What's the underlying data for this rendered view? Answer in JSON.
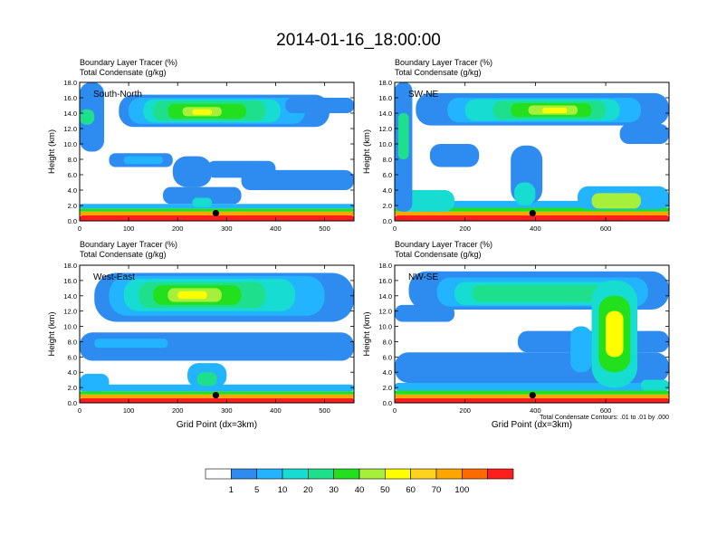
{
  "title": "2014-01-16_18:00:00",
  "colorbar": {
    "colors": [
      "#ffffff",
      "#2e8cf0",
      "#22b4ff",
      "#16dcd2",
      "#1ee08c",
      "#22e01e",
      "#a6f03c",
      "#ffff00",
      "#ffd21e",
      "#ffa500",
      "#ff6a00",
      "#ff1e1e"
    ],
    "labels": [
      "1",
      "5",
      "10",
      "20",
      "30",
      "40",
      "50",
      "60",
      "70",
      "100"
    ]
  },
  "footnote": "Total Condensate Contours: .01 to .01 by .000",
  "chart_data": [
    {
      "type": "heatmap",
      "panel": "South-North",
      "title_line1": "Boundary Layer Tracer   (%)",
      "title_line2": "Total Condensate   (g/kg)",
      "ylabel": "Height (km)",
      "xlabel": "",
      "xlim": [
        0,
        560
      ],
      "ylim": [
        0,
        18
      ],
      "xticks": [
        0,
        100,
        200,
        300,
        400,
        500
      ],
      "yticks": [
        "0.0",
        "2.0",
        "4.0",
        "6.0",
        "8.0",
        "10.0",
        "12.0",
        "14.0",
        "16.0",
        "18.0"
      ],
      "marker": {
        "x": 278,
        "y": 1.0
      },
      "blobs": [
        {
          "x0": 0,
          "x1": 560,
          "y0": 0,
          "y1": 0.7,
          "level": 11
        },
        {
          "x0": 0,
          "x1": 560,
          "y0": 0.7,
          "y1": 1.2,
          "level": 9
        },
        {
          "x0": 0,
          "x1": 560,
          "y0": 1.2,
          "y1": 1.6,
          "level": 5
        },
        {
          "x0": 0,
          "x1": 560,
          "y0": 1.6,
          "y1": 2.2,
          "level": 2
        },
        {
          "x0": 170,
          "x1": 330,
          "y0": 2.2,
          "y1": 4.4,
          "level": 1
        },
        {
          "x0": 190,
          "x1": 270,
          "y0": 4.4,
          "y1": 8.4,
          "level": 1
        },
        {
          "x0": 230,
          "x1": 270,
          "y0": 1.8,
          "y1": 3.0,
          "level": 3
        },
        {
          "x0": 260,
          "x1": 400,
          "y0": 5.6,
          "y1": 7.8,
          "level": 1
        },
        {
          "x0": 60,
          "x1": 190,
          "y0": 7.0,
          "y1": 8.8,
          "level": 1
        },
        {
          "x0": 90,
          "x1": 170,
          "y0": 7.4,
          "y1": 8.4,
          "level": 2
        },
        {
          "x0": 80,
          "x1": 510,
          "y0": 12.2,
          "y1": 16.4,
          "level": 1
        },
        {
          "x0": 0,
          "x1": 50,
          "y0": 9.0,
          "y1": 18.0,
          "level": 1
        },
        {
          "x0": 100,
          "x1": 460,
          "y0": 12.6,
          "y1": 16.0,
          "level": 2
        },
        {
          "x0": 130,
          "x1": 410,
          "y0": 12.8,
          "y1": 15.8,
          "level": 3
        },
        {
          "x0": 150,
          "x1": 380,
          "y0": 13.0,
          "y1": 15.6,
          "level": 4
        },
        {
          "x0": 180,
          "x1": 340,
          "y0": 13.3,
          "y1": 15.2,
          "level": 5
        },
        {
          "x0": 210,
          "x1": 290,
          "y0": 13.6,
          "y1": 14.8,
          "level": 6
        },
        {
          "x0": 230,
          "x1": 270,
          "y0": 13.8,
          "y1": 14.5,
          "level": 7
        },
        {
          "x0": 0,
          "x1": 30,
          "y0": 12.5,
          "y1": 14.5,
          "level": 4
        },
        {
          "x0": 330,
          "x1": 560,
          "y0": 4.0,
          "y1": 6.6,
          "level": 1
        },
        {
          "x0": 420,
          "x1": 560,
          "y0": 14.0,
          "y1": 16.0,
          "level": 1
        }
      ]
    },
    {
      "type": "heatmap",
      "panel": "SW-NE",
      "title_line1": "Boundary Layer Tracer   (%)",
      "title_line2": "Total Condensate   (g/kg)",
      "ylabel": "Height (km)",
      "xlabel": "",
      "xlim": [
        0,
        780
      ],
      "ylim": [
        0,
        18
      ],
      "xticks": [
        0,
        200,
        400,
        600
      ],
      "yticks": [
        "0.0",
        "2.0",
        "4.0",
        "6.0",
        "8.0",
        "10.0",
        "12.0",
        "14.0",
        "16.0",
        "18.0"
      ],
      "marker": {
        "x": 392,
        "y": 1.0
      },
      "blobs": [
        {
          "x0": 0,
          "x1": 780,
          "y0": 0,
          "y1": 0.7,
          "level": 11
        },
        {
          "x0": 0,
          "x1": 780,
          "y0": 0.7,
          "y1": 1.2,
          "level": 9
        },
        {
          "x0": 0,
          "x1": 780,
          "y0": 1.2,
          "y1": 1.7,
          "level": 5
        },
        {
          "x0": 0,
          "x1": 780,
          "y0": 1.7,
          "y1": 2.6,
          "level": 2
        },
        {
          "x0": 0,
          "x1": 170,
          "y0": 1.2,
          "y1": 4.0,
          "level": 3
        },
        {
          "x0": 0,
          "x1": 50,
          "y0": 1.2,
          "y1": 18.0,
          "level": 1
        },
        {
          "x0": 10,
          "x1": 40,
          "y0": 8.0,
          "y1": 14.0,
          "level": 4
        },
        {
          "x0": 100,
          "x1": 240,
          "y0": 7.0,
          "y1": 10.0,
          "level": 1
        },
        {
          "x0": 330,
          "x1": 420,
          "y0": 2.2,
          "y1": 9.8,
          "level": 1
        },
        {
          "x0": 340,
          "x1": 400,
          "y0": 2.0,
          "y1": 5.0,
          "level": 3
        },
        {
          "x0": 520,
          "x1": 780,
          "y0": 1.5,
          "y1": 4.5,
          "level": 2
        },
        {
          "x0": 560,
          "x1": 700,
          "y0": 1.6,
          "y1": 3.6,
          "level": 6
        },
        {
          "x0": 60,
          "x1": 780,
          "y0": 12.4,
          "y1": 16.6,
          "level": 1
        },
        {
          "x0": 150,
          "x1": 700,
          "y0": 12.8,
          "y1": 16.0,
          "level": 2
        },
        {
          "x0": 200,
          "x1": 640,
          "y0": 13.0,
          "y1": 15.8,
          "level": 3
        },
        {
          "x0": 280,
          "x1": 600,
          "y0": 13.2,
          "y1": 15.6,
          "level": 4
        },
        {
          "x0": 330,
          "x1": 560,
          "y0": 13.5,
          "y1": 15.3,
          "level": 5
        },
        {
          "x0": 380,
          "x1": 520,
          "y0": 13.8,
          "y1": 15.0,
          "level": 6
        },
        {
          "x0": 420,
          "x1": 490,
          "y0": 14.0,
          "y1": 14.7,
          "level": 7
        },
        {
          "x0": 640,
          "x1": 780,
          "y0": 10.0,
          "y1": 12.6,
          "level": 1
        }
      ]
    },
    {
      "type": "heatmap",
      "panel": "West-East",
      "title_line1": "Boundary Layer Tracer   (%)",
      "title_line2": "Total Condensate   (g/kg)",
      "ylabel": "Height (km)",
      "xlabel": "Grid Point (dx=3km)",
      "xlim": [
        0,
        560
      ],
      "ylim": [
        0,
        18
      ],
      "xticks": [
        0,
        100,
        200,
        300,
        400,
        500
      ],
      "yticks": [
        "0.0",
        "2.0",
        "4.0",
        "6.0",
        "8.0",
        "10.0",
        "12.0",
        "14.0",
        "16.0",
        "18.0"
      ],
      "marker": {
        "x": 278,
        "y": 1.0
      },
      "blobs": [
        {
          "x0": 0,
          "x1": 560,
          "y0": 0,
          "y1": 0.6,
          "level": 11
        },
        {
          "x0": 0,
          "x1": 560,
          "y0": 0.6,
          "y1": 1.1,
          "level": 9
        },
        {
          "x0": 0,
          "x1": 560,
          "y0": 1.1,
          "y1": 1.5,
          "level": 5
        },
        {
          "x0": 0,
          "x1": 560,
          "y0": 1.5,
          "y1": 2.4,
          "level": 2
        },
        {
          "x0": 0,
          "x1": 60,
          "y0": 1.5,
          "y1": 3.8,
          "level": 2
        },
        {
          "x0": 220,
          "x1": 300,
          "y0": 2.0,
          "y1": 5.2,
          "level": 2
        },
        {
          "x0": 240,
          "x1": 280,
          "y0": 2.2,
          "y1": 4.0,
          "level": 4
        },
        {
          "x0": 0,
          "x1": 560,
          "y0": 5.5,
          "y1": 9.2,
          "level": 1
        },
        {
          "x0": 30,
          "x1": 180,
          "y0": 7.2,
          "y1": 8.4,
          "level": 2
        },
        {
          "x0": 30,
          "x1": 560,
          "y0": 10.6,
          "y1": 17.0,
          "level": 1
        },
        {
          "x0": 60,
          "x1": 500,
          "y0": 11.4,
          "y1": 16.6,
          "level": 2
        },
        {
          "x0": 90,
          "x1": 440,
          "y0": 12.0,
          "y1": 16.2,
          "level": 3
        },
        {
          "x0": 120,
          "x1": 380,
          "y0": 12.4,
          "y1": 15.8,
          "level": 4
        },
        {
          "x0": 150,
          "x1": 330,
          "y0": 12.8,
          "y1": 15.4,
          "level": 5
        },
        {
          "x0": 180,
          "x1": 290,
          "y0": 13.2,
          "y1": 15.0,
          "level": 6
        },
        {
          "x0": 200,
          "x1": 260,
          "y0": 13.6,
          "y1": 14.6,
          "level": 7
        }
      ]
    },
    {
      "type": "heatmap",
      "panel": "NW-SE",
      "title_line1": "Boundary Layer Tracer   (%)",
      "title_line2": "Total Condensate   (g/kg)",
      "ylabel": "Height (km)",
      "xlabel": "Grid Point (dx=3km)",
      "xlim": [
        0,
        780
      ],
      "ylim": [
        0,
        18
      ],
      "xticks": [
        0,
        200,
        400,
        600
      ],
      "yticks": [
        "0.0",
        "2.0",
        "4.0",
        "6.0",
        "8.0",
        "10.0",
        "12.0",
        "14.0",
        "16.0",
        "18.0"
      ],
      "marker": {
        "x": 392,
        "y": 1.0
      },
      "blobs": [
        {
          "x0": 0,
          "x1": 780,
          "y0": 0,
          "y1": 0.6,
          "level": 11
        },
        {
          "x0": 0,
          "x1": 780,
          "y0": 0.6,
          "y1": 1.1,
          "level": 9
        },
        {
          "x0": 0,
          "x1": 780,
          "y0": 1.1,
          "y1": 1.6,
          "level": 5
        },
        {
          "x0": 0,
          "x1": 780,
          "y0": 1.6,
          "y1": 2.6,
          "level": 2
        },
        {
          "x0": 0,
          "x1": 780,
          "y0": 2.6,
          "y1": 6.6,
          "level": 1
        },
        {
          "x0": 350,
          "x1": 780,
          "y0": 6.6,
          "y1": 9.4,
          "level": 1
        },
        {
          "x0": 0,
          "x1": 170,
          "y0": 10.6,
          "y1": 12.8,
          "level": 1
        },
        {
          "x0": 40,
          "x1": 780,
          "y0": 12.2,
          "y1": 17.2,
          "level": 1
        },
        {
          "x0": 120,
          "x1": 720,
          "y0": 12.6,
          "y1": 16.4,
          "level": 2
        },
        {
          "x0": 170,
          "x1": 660,
          "y0": 12.8,
          "y1": 15.8,
          "level": 3
        },
        {
          "x0": 220,
          "x1": 600,
          "y0": 13.2,
          "y1": 15.4,
          "level": 4
        },
        {
          "x0": 560,
          "x1": 690,
          "y0": 2.0,
          "y1": 16.0,
          "level": 3
        },
        {
          "x0": 580,
          "x1": 670,
          "y0": 4.0,
          "y1": 14.0,
          "level": 5
        },
        {
          "x0": 600,
          "x1": 650,
          "y0": 6.0,
          "y1": 12.0,
          "level": 7
        },
        {
          "x0": 500,
          "x1": 560,
          "y0": 4.0,
          "y1": 10.0,
          "level": 2
        },
        {
          "x0": 700,
          "x1": 780,
          "y0": 1.6,
          "y1": 3.0,
          "level": 3
        }
      ]
    }
  ]
}
